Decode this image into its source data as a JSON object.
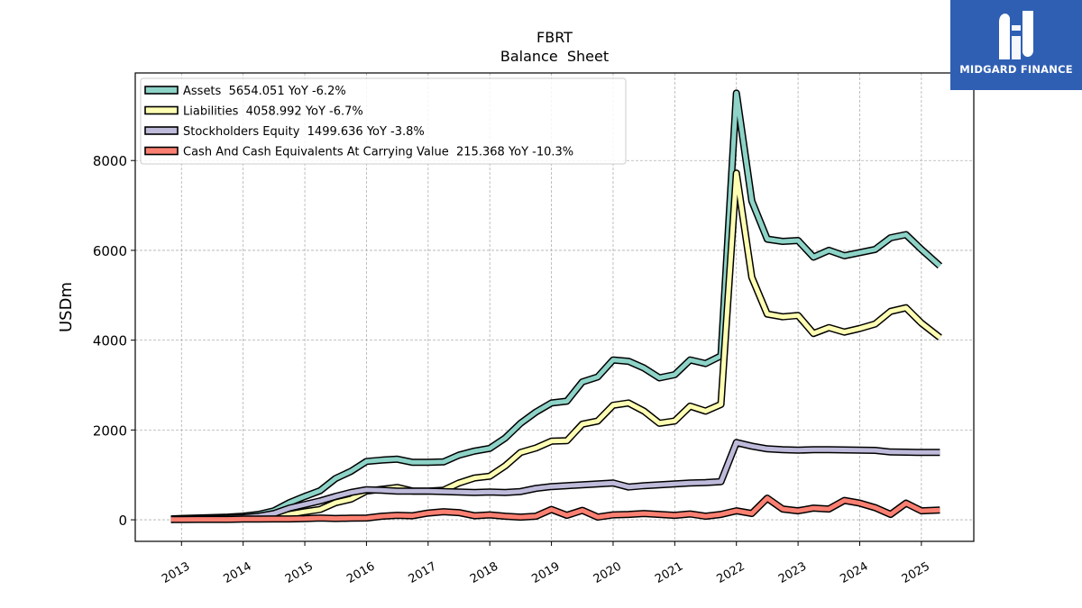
{
  "brand": {
    "name": "MIDGARD FINANCE",
    "bg_color": "#2f5fb3"
  },
  "chart_data": {
    "type": "line",
    "title": "FBRT",
    "subtitle": "Balance  Sheet",
    "xlabel": "",
    "ylabel": "USDm",
    "xlim": [
      2012.25,
      2025.85
    ],
    "ylim": [
      -480,
      9950
    ],
    "yticks": [
      0,
      2000,
      4000,
      6000,
      8000
    ],
    "xticks": [
      2013,
      2014,
      2015,
      2016,
      2017,
      2018,
      2019,
      2020,
      2021,
      2022,
      2023,
      2024,
      2025
    ],
    "grid": true,
    "legend_position": "top-left",
    "series": [
      {
        "name": "Assets  5654.051 YoY -6.2%",
        "color": "#8dd3c7",
        "points": [
          [
            2012.83,
            20
          ],
          [
            2013.0,
            30
          ],
          [
            2013.25,
            40
          ],
          [
            2013.5,
            50
          ],
          [
            2013.75,
            60
          ],
          [
            2014.0,
            80
          ],
          [
            2014.25,
            120
          ],
          [
            2014.5,
            200
          ],
          [
            2014.75,
            380
          ],
          [
            2015.0,
            520
          ],
          [
            2015.25,
            650
          ],
          [
            2015.5,
            920
          ],
          [
            2015.75,
            1080
          ],
          [
            2016.0,
            1300
          ],
          [
            2016.25,
            1330
          ],
          [
            2016.5,
            1350
          ],
          [
            2016.75,
            1280
          ],
          [
            2017.0,
            1280
          ],
          [
            2017.25,
            1290
          ],
          [
            2017.5,
            1440
          ],
          [
            2017.75,
            1530
          ],
          [
            2018.0,
            1590
          ],
          [
            2018.25,
            1820
          ],
          [
            2018.5,
            2150
          ],
          [
            2018.75,
            2400
          ],
          [
            2019.0,
            2600
          ],
          [
            2019.25,
            2640
          ],
          [
            2019.5,
            3070
          ],
          [
            2019.75,
            3180
          ],
          [
            2020.0,
            3560
          ],
          [
            2020.25,
            3530
          ],
          [
            2020.5,
            3380
          ],
          [
            2020.75,
            3160
          ],
          [
            2021.0,
            3230
          ],
          [
            2021.25,
            3560
          ],
          [
            2021.5,
            3480
          ],
          [
            2021.75,
            3650
          ],
          [
            2022.0,
            9500
          ],
          [
            2022.25,
            7100
          ],
          [
            2022.5,
            6250
          ],
          [
            2022.75,
            6200
          ],
          [
            2023.0,
            6220
          ],
          [
            2023.25,
            5850
          ],
          [
            2023.5,
            6000
          ],
          [
            2023.75,
            5880
          ],
          [
            2024.0,
            5950
          ],
          [
            2024.25,
            6020
          ],
          [
            2024.5,
            6280
          ],
          [
            2024.75,
            6350
          ],
          [
            2025.0,
            6020
          ],
          [
            2025.3,
            5654
          ]
        ]
      },
      {
        "name": "Liabilities  4058.992 YoY -6.7%",
        "color": "#ffffb3",
        "points": [
          [
            2012.83,
            10
          ],
          [
            2013.0,
            15
          ],
          [
            2013.25,
            20
          ],
          [
            2013.5,
            20
          ],
          [
            2013.75,
            20
          ],
          [
            2014.0,
            30
          ],
          [
            2014.25,
            40
          ],
          [
            2014.5,
            60
          ],
          [
            2014.75,
            120
          ],
          [
            2015.0,
            180
          ],
          [
            2015.25,
            230
          ],
          [
            2015.5,
            380
          ],
          [
            2015.75,
            460
          ],
          [
            2016.0,
            640
          ],
          [
            2016.25,
            680
          ],
          [
            2016.5,
            720
          ],
          [
            2016.75,
            640
          ],
          [
            2017.0,
            640
          ],
          [
            2017.25,
            660
          ],
          [
            2017.5,
            820
          ],
          [
            2017.75,
            930
          ],
          [
            2018.0,
            970
          ],
          [
            2018.25,
            1200
          ],
          [
            2018.5,
            1500
          ],
          [
            2018.75,
            1600
          ],
          [
            2019.0,
            1750
          ],
          [
            2019.25,
            1760
          ],
          [
            2019.5,
            2130
          ],
          [
            2019.75,
            2200
          ],
          [
            2020.0,
            2550
          ],
          [
            2020.25,
            2600
          ],
          [
            2020.5,
            2420
          ],
          [
            2020.75,
            2150
          ],
          [
            2021.0,
            2200
          ],
          [
            2021.25,
            2530
          ],
          [
            2021.5,
            2420
          ],
          [
            2021.75,
            2570
          ],
          [
            2022.0,
            7720
          ],
          [
            2022.25,
            5400
          ],
          [
            2022.5,
            4580
          ],
          [
            2022.75,
            4520
          ],
          [
            2023.0,
            4550
          ],
          [
            2023.25,
            4150
          ],
          [
            2023.5,
            4280
          ],
          [
            2023.75,
            4180
          ],
          [
            2024.0,
            4260
          ],
          [
            2024.25,
            4360
          ],
          [
            2024.5,
            4640
          ],
          [
            2024.75,
            4720
          ],
          [
            2025.0,
            4380
          ],
          [
            2025.3,
            4059
          ]
        ]
      },
      {
        "name": "Stockholders Equity  1499.636 YoY -3.8%",
        "color": "#bebada",
        "points": [
          [
            2012.83,
            10
          ],
          [
            2013.0,
            15
          ],
          [
            2013.25,
            20
          ],
          [
            2013.5,
            30
          ],
          [
            2013.75,
            40
          ],
          [
            2014.0,
            50
          ],
          [
            2014.25,
            80
          ],
          [
            2014.5,
            140
          ],
          [
            2014.75,
            260
          ],
          [
            2015.0,
            340
          ],
          [
            2015.25,
            420
          ],
          [
            2015.5,
            520
          ],
          [
            2015.75,
            610
          ],
          [
            2016.0,
            670
          ],
          [
            2016.25,
            660
          ],
          [
            2016.5,
            640
          ],
          [
            2016.75,
            640
          ],
          [
            2017.0,
            640
          ],
          [
            2017.25,
            630
          ],
          [
            2017.5,
            620
          ],
          [
            2017.75,
            610
          ],
          [
            2018.0,
            620
          ],
          [
            2018.25,
            610
          ],
          [
            2018.5,
            630
          ],
          [
            2018.75,
            700
          ],
          [
            2019.0,
            740
          ],
          [
            2019.25,
            760
          ],
          [
            2019.5,
            780
          ],
          [
            2019.75,
            800
          ],
          [
            2020.0,
            820
          ],
          [
            2020.25,
            730
          ],
          [
            2020.5,
            760
          ],
          [
            2020.75,
            780
          ],
          [
            2021.0,
            800
          ],
          [
            2021.25,
            820
          ],
          [
            2021.5,
            830
          ],
          [
            2021.75,
            850
          ],
          [
            2022.0,
            1720
          ],
          [
            2022.25,
            1640
          ],
          [
            2022.5,
            1580
          ],
          [
            2022.75,
            1560
          ],
          [
            2023.0,
            1550
          ],
          [
            2023.25,
            1560
          ],
          [
            2023.5,
            1560
          ],
          [
            2023.75,
            1555
          ],
          [
            2024.0,
            1550
          ],
          [
            2024.25,
            1545
          ],
          [
            2024.5,
            1510
          ],
          [
            2024.75,
            1505
          ],
          [
            2025.0,
            1500
          ],
          [
            2025.3,
            1500
          ]
        ]
      },
      {
        "name": "Cash And Cash Equivalents At Carrying Value  215.368 YoY -10.3%",
        "color": "#fb8072",
        "points": [
          [
            2012.83,
            5
          ],
          [
            2013.0,
            5
          ],
          [
            2013.25,
            10
          ],
          [
            2013.5,
            10
          ],
          [
            2013.75,
            10
          ],
          [
            2014.0,
            15
          ],
          [
            2014.25,
            15
          ],
          [
            2014.5,
            20
          ],
          [
            2014.75,
            20
          ],
          [
            2015.0,
            25
          ],
          [
            2015.25,
            40
          ],
          [
            2015.5,
            30
          ],
          [
            2015.75,
            35
          ],
          [
            2016.0,
            40
          ],
          [
            2016.25,
            80
          ],
          [
            2016.5,
            100
          ],
          [
            2016.75,
            90
          ],
          [
            2017.0,
            150
          ],
          [
            2017.25,
            180
          ],
          [
            2017.5,
            160
          ],
          [
            2017.75,
            90
          ],
          [
            2018.0,
            110
          ],
          [
            2018.25,
            80
          ],
          [
            2018.5,
            60
          ],
          [
            2018.75,
            80
          ],
          [
            2019.0,
            230
          ],
          [
            2019.25,
            100
          ],
          [
            2019.5,
            210
          ],
          [
            2019.75,
            60
          ],
          [
            2020.0,
            110
          ],
          [
            2020.25,
            120
          ],
          [
            2020.5,
            140
          ],
          [
            2020.75,
            120
          ],
          [
            2021.0,
            100
          ],
          [
            2021.25,
            130
          ],
          [
            2021.5,
            80
          ],
          [
            2021.75,
            120
          ],
          [
            2022.0,
            200
          ],
          [
            2022.25,
            140
          ],
          [
            2022.5,
            480
          ],
          [
            2022.75,
            240
          ],
          [
            2023.0,
            200
          ],
          [
            2023.25,
            260
          ],
          [
            2023.5,
            240
          ],
          [
            2023.75,
            430
          ],
          [
            2024.0,
            370
          ],
          [
            2024.25,
            270
          ],
          [
            2024.5,
            120
          ],
          [
            2024.75,
            370
          ],
          [
            2025.0,
            200
          ],
          [
            2025.3,
            215
          ]
        ]
      }
    ]
  }
}
